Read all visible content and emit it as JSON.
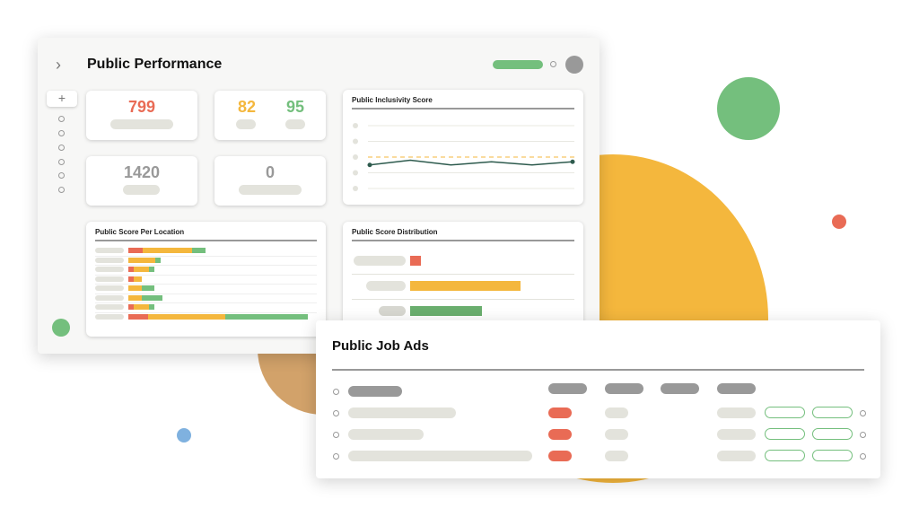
{
  "colors": {
    "red": "#e96b55",
    "yellow": "#f4b73d",
    "green": "#74bf7d",
    "gray": "#999999",
    "pill": "#e3e3dc",
    "line": "#2e5b4e"
  },
  "performance": {
    "title": "Public Performance",
    "collapse_icon": "chevron-right-icon",
    "add_icon": "plus-icon",
    "stats": {
      "red_value": "799",
      "yellow_value": "82",
      "green_value": "95",
      "total_value": "1420",
      "zero_value": "0"
    },
    "inclusivity": {
      "title": "Public Inclusivity Score",
      "type": "line",
      "values": [
        1.5,
        1.8,
        1.5,
        1.7,
        1.5,
        1.7
      ],
      "ylim": [
        0,
        4
      ],
      "threshold": 2
    },
    "location": {
      "title": "Public Score Per Location",
      "type": "stacked-bar",
      "rows": [
        [
          16,
          55,
          15
        ],
        [
          0,
          30,
          6
        ],
        [
          6,
          17,
          6
        ],
        [
          6,
          9,
          0
        ],
        [
          0,
          15,
          14
        ],
        [
          0,
          15,
          23
        ],
        [
          6,
          17,
          6
        ],
        [
          22,
          86,
          92
        ]
      ]
    },
    "distribution": {
      "title": "Public Score Distribution",
      "type": "bar",
      "values": [
        10,
        100,
        65
      ]
    }
  },
  "job_ads": {
    "title": "Public Job Ads",
    "rows": 3
  }
}
